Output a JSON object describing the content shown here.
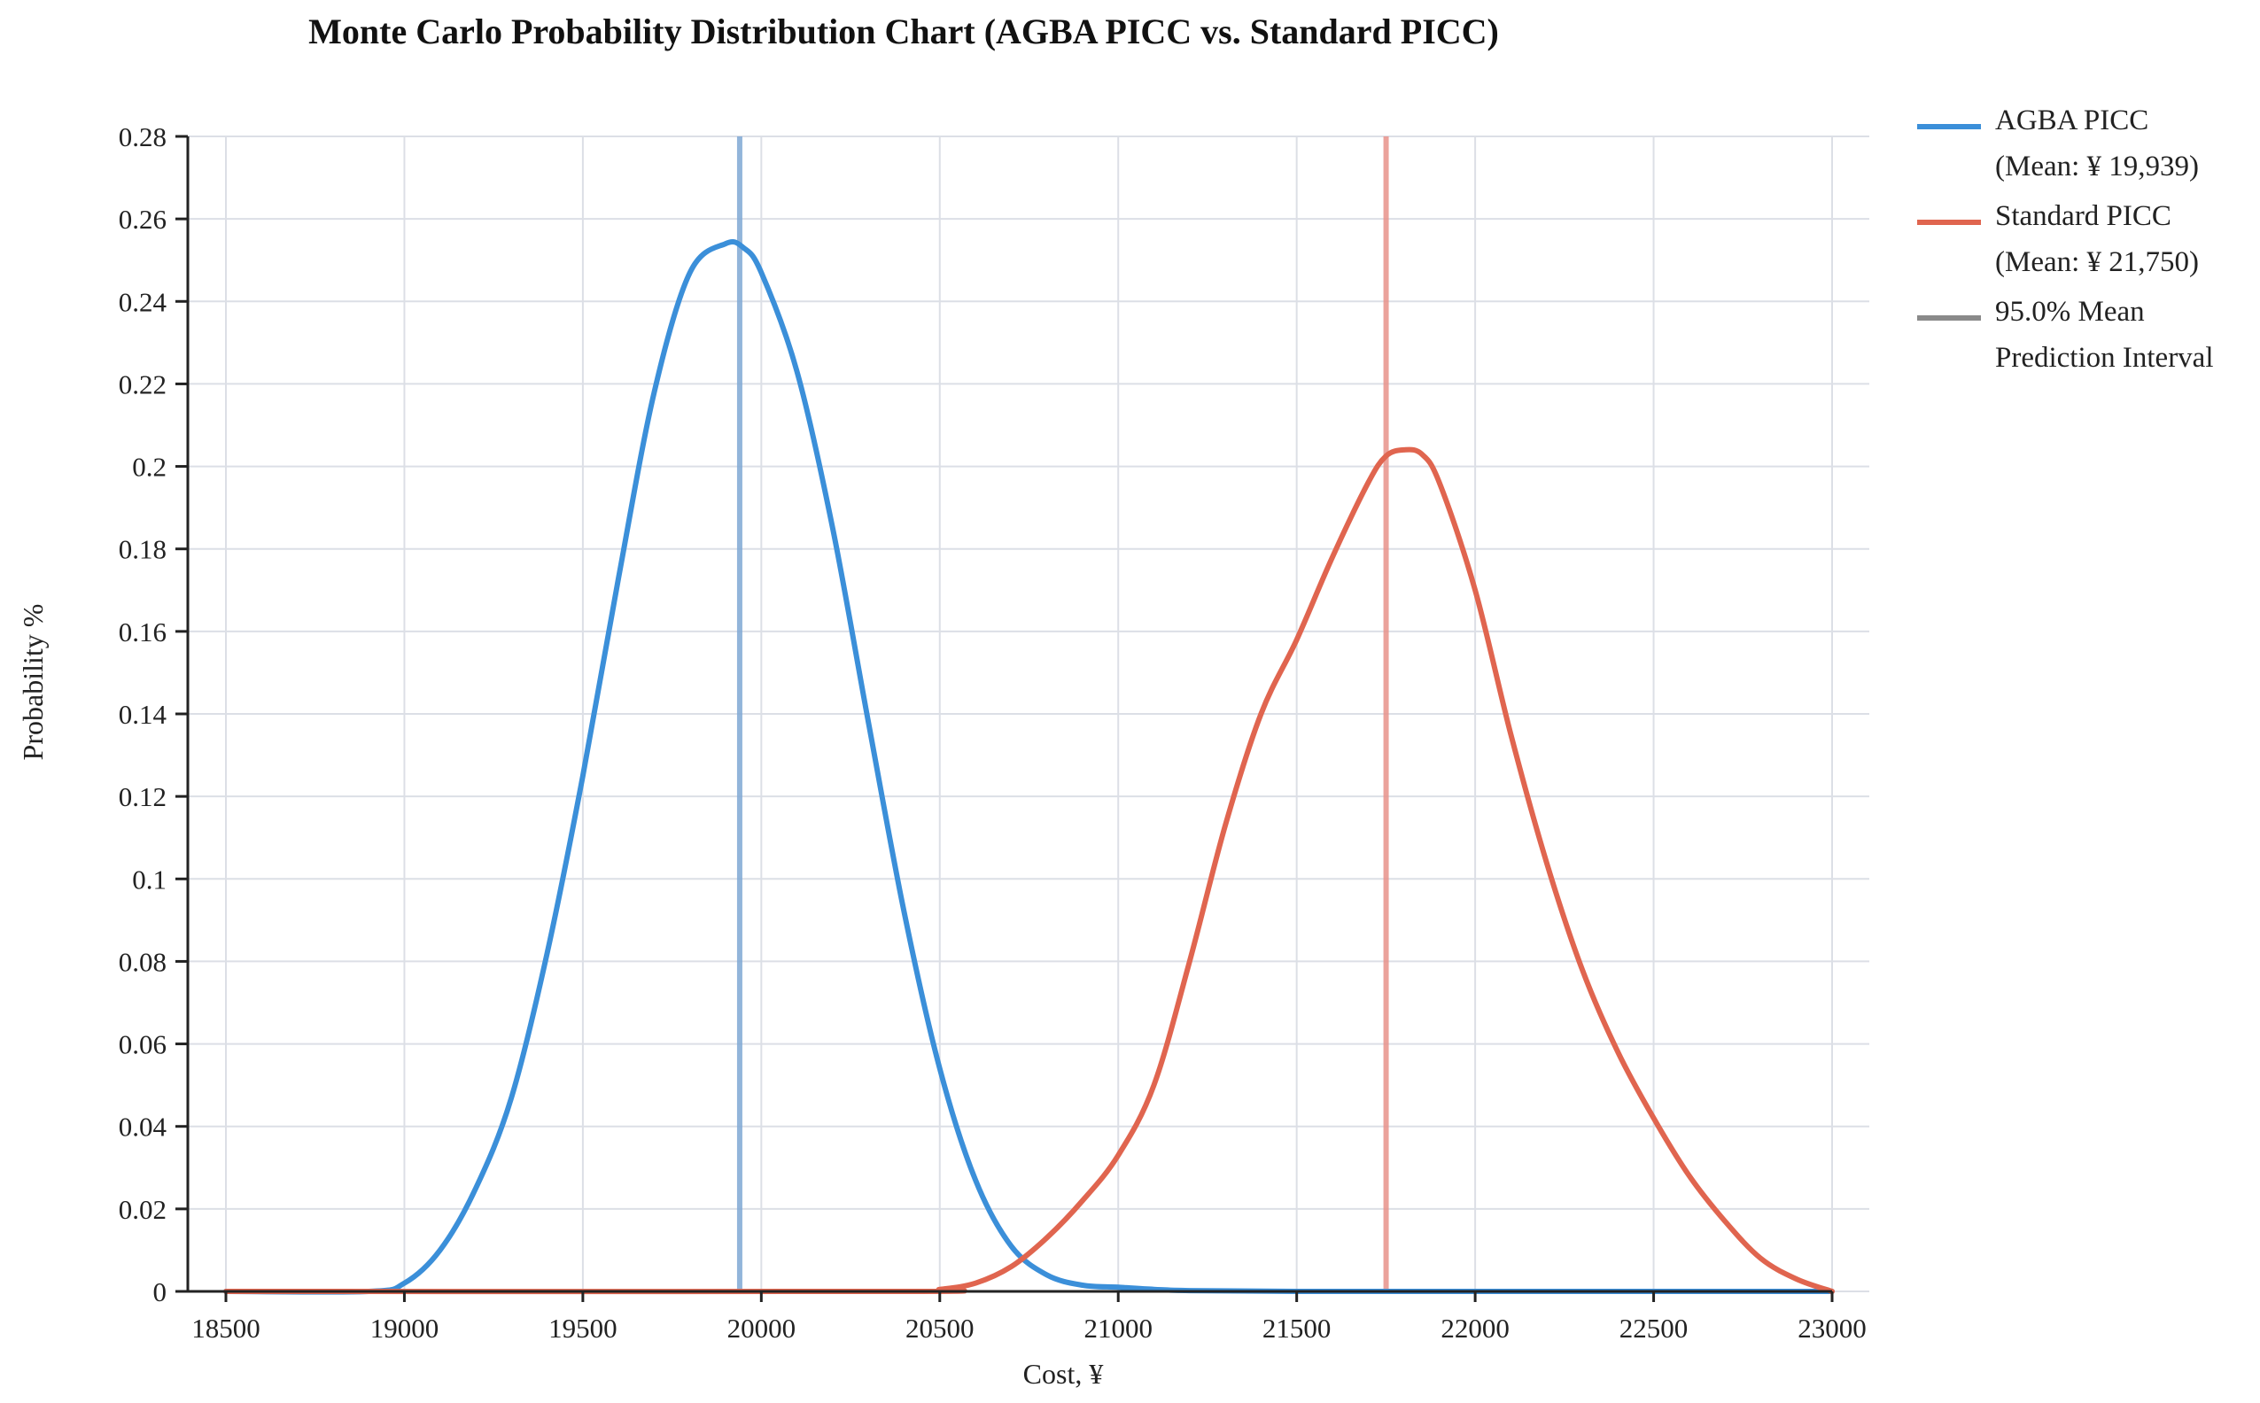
{
  "chart_data": {
    "type": "line",
    "title": "Monte Carlo Probability Distribution Chart (AGBA PICC vs. Standard PICC)",
    "xlabel": "Cost, ¥",
    "ylabel": "Probability %",
    "xlim": [
      18500,
      23000
    ],
    "ylim": [
      0,
      0.28
    ],
    "xticks": [
      18500,
      19000,
      19500,
      20000,
      20500,
      21000,
      21500,
      22000,
      22500,
      23000
    ],
    "yticks": [
      "0",
      "0.02",
      "0.04",
      "0.06",
      "0.08",
      "0.1",
      "0.12",
      "0.14",
      "0.16",
      "0.18",
      "0.2",
      "0.22",
      "0.24",
      "0.26",
      "0.28"
    ],
    "grid": true,
    "legend_position": "right",
    "series": [
      {
        "name": "AGBA PICC",
        "legend_line1": "AGBA PICC",
        "legend_line2": "(Mean:  ¥ 19,939)",
        "color": "#3b8fd9",
        "mean": 19939,
        "x": [
          18500,
          18900,
          19000,
          19100,
          19200,
          19300,
          19400,
          19500,
          19600,
          19700,
          19800,
          19900,
          19950,
          20000,
          20100,
          20200,
          20300,
          20400,
          20500,
          20600,
          20700,
          20800,
          20900,
          21000,
          21100,
          21200,
          21500,
          22000,
          23000
        ],
        "y": [
          0,
          0,
          0.002,
          0.01,
          0.025,
          0.047,
          0.082,
          0.125,
          0.173,
          0.218,
          0.247,
          0.254,
          0.253,
          0.247,
          0.223,
          0.185,
          0.138,
          0.092,
          0.054,
          0.027,
          0.011,
          0.004,
          0.0015,
          0.001,
          0.0005,
          0.0002,
          0,
          0,
          0
        ]
      },
      {
        "name": "Standard PICC",
        "legend_line1": "Standard PICC",
        "legend_line2": "(Mean:  ¥ 21,750)",
        "color": "#e0654f",
        "mean": 21750,
        "x": [
          18500,
          20400,
          20500,
          20600,
          20700,
          20800,
          20900,
          21000,
          21100,
          21200,
          21300,
          21400,
          21500,
          21600,
          21700,
          21750,
          21800,
          21850,
          21900,
          22000,
          22100,
          22200,
          22300,
          22400,
          22500,
          22600,
          22700,
          22800,
          22900,
          23000
        ],
        "y": [
          0,
          0,
          0.0005,
          0.002,
          0.006,
          0.013,
          0.022,
          0.033,
          0.05,
          0.08,
          0.113,
          0.14,
          0.158,
          0.178,
          0.196,
          0.2025,
          0.204,
          0.203,
          0.196,
          0.17,
          0.135,
          0.104,
          0.078,
          0.058,
          0.042,
          0.028,
          0.017,
          0.008,
          0.003,
          0
        ]
      },
      {
        "name": "95.0% Mean Prediction Interval",
        "legend_line1": "95.0% Mean",
        "legend_line2": "Prediction Interval",
        "color": "#8a8a8a",
        "intervals": [
          {
            "low": 19932,
            "high": 19946,
            "color": "#7fa8d4"
          },
          {
            "low": 21743,
            "high": 21757,
            "color": "#e8928a"
          }
        ]
      }
    ]
  }
}
